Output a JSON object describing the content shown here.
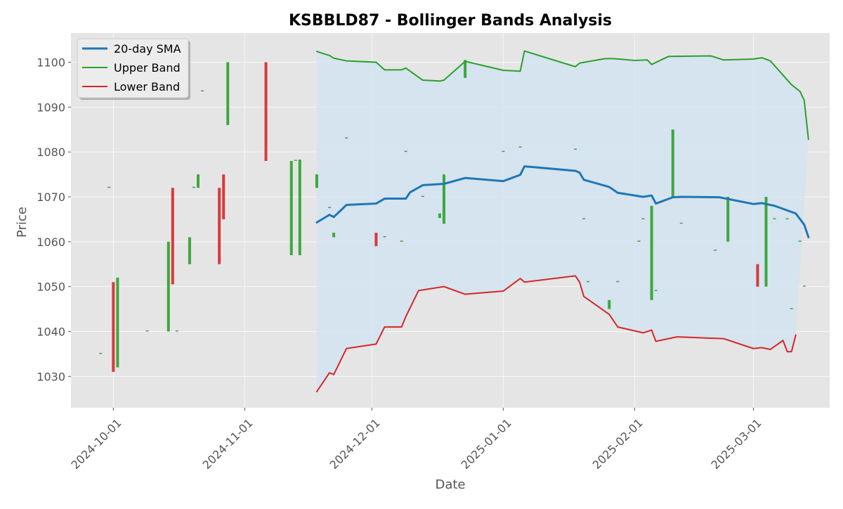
{
  "chart_data": {
    "type": "line",
    "title": "KSBBLD87 - Bollinger Bands Analysis",
    "xlabel": "Date",
    "ylabel": "Price",
    "xlim": [
      "2024-09-21",
      "2025-03-19"
    ],
    "ylim": [
      1023,
      1106.5
    ],
    "yticks": [
      1030,
      1040,
      1050,
      1060,
      1070,
      1080,
      1090,
      1100
    ],
    "xticks": [
      "2024-10-01",
      "2024-11-01",
      "2024-12-01",
      "2025-01-01",
      "2025-02-01",
      "2025-03-01"
    ],
    "grid": true,
    "legend_position": "top-left",
    "colors": {
      "sma": "#1f77b4",
      "upper": "#2ca02c",
      "lower": "#d62728",
      "band_fill": "#cfe3f0",
      "up_candle": "#2ca02c",
      "down_candle": "#d62728",
      "plot_bg": "#e5e5e5"
    },
    "series": [
      {
        "name": "20-day SMA",
        "color": "#1f77b4",
        "points": [
          [
            "2024-11-18",
            1064.3
          ],
          [
            "2024-11-21",
            1066.0
          ],
          [
            "2024-11-22",
            1065.5
          ],
          [
            "2024-11-25",
            1068.2
          ],
          [
            "2024-12-02",
            1068.5
          ],
          [
            "2024-12-04",
            1069.6
          ],
          [
            "2024-12-09",
            1069.6
          ],
          [
            "2024-12-10",
            1071.0
          ],
          [
            "2024-12-13",
            1072.6
          ],
          [
            "2024-12-18",
            1072.9
          ],
          [
            "2024-12-23",
            1074.2
          ],
          [
            "2025-01-01",
            1073.5
          ],
          [
            "2025-01-05",
            1074.9
          ],
          [
            "2025-01-06",
            1076.8
          ],
          [
            "2025-01-18",
            1075.8
          ],
          [
            "2025-01-19",
            1075.4
          ],
          [
            "2025-01-20",
            1073.8
          ],
          [
            "2025-01-26",
            1072.2
          ],
          [
            "2025-01-28",
            1070.9
          ],
          [
            "2025-02-03",
            1070.0
          ],
          [
            "2025-02-05",
            1070.3
          ],
          [
            "2025-02-06",
            1068.5
          ],
          [
            "2025-02-10",
            1069.9
          ],
          [
            "2025-02-12",
            1070.0
          ],
          [
            "2025-02-21",
            1069.9
          ],
          [
            "2025-03-01",
            1068.4
          ],
          [
            "2025-03-03",
            1068.6
          ],
          [
            "2025-03-06",
            1068.0
          ],
          [
            "2025-03-11",
            1066.3
          ],
          [
            "2025-03-13",
            1063.8
          ],
          [
            "2025-03-14",
            1061.0
          ]
        ]
      },
      {
        "name": "Upper Band",
        "color": "#2ca02c",
        "points": [
          [
            "2024-11-18",
            1102.4
          ],
          [
            "2024-11-21",
            1101.5
          ],
          [
            "2024-11-22",
            1100.9
          ],
          [
            "2024-11-25",
            1100.3
          ],
          [
            "2024-12-02",
            1100.0
          ],
          [
            "2024-12-04",
            1098.3
          ],
          [
            "2024-12-08",
            1098.3
          ],
          [
            "2024-12-09",
            1098.7
          ],
          [
            "2024-12-13",
            1096.0
          ],
          [
            "2024-12-17",
            1095.8
          ],
          [
            "2024-12-18",
            1096.0
          ],
          [
            "2024-12-23",
            1100.2
          ],
          [
            "2025-01-01",
            1098.2
          ],
          [
            "2025-01-05",
            1098.0
          ],
          [
            "2025-01-06",
            1102.5
          ],
          [
            "2025-01-18",
            1099.0
          ],
          [
            "2025-01-19",
            1099.8
          ],
          [
            "2025-01-25",
            1100.8
          ],
          [
            "2025-01-27",
            1100.8
          ],
          [
            "2025-02-01",
            1100.4
          ],
          [
            "2025-02-04",
            1100.5
          ],
          [
            "2025-02-05",
            1099.5
          ],
          [
            "2025-02-09",
            1101.3
          ],
          [
            "2025-02-19",
            1101.4
          ],
          [
            "2025-02-22",
            1100.5
          ],
          [
            "2025-03-01",
            1100.7
          ],
          [
            "2025-03-03",
            1101.0
          ],
          [
            "2025-03-05",
            1100.3
          ],
          [
            "2025-03-10",
            1095.0
          ],
          [
            "2025-03-12",
            1093.5
          ],
          [
            "2025-03-13",
            1091.5
          ],
          [
            "2025-03-14",
            1082.8
          ]
        ]
      },
      {
        "name": "Lower Band",
        "color": "#d62728",
        "points": [
          [
            "2024-11-18",
            1026.6
          ],
          [
            "2024-11-21",
            1030.8
          ],
          [
            "2024-11-22",
            1030.4
          ],
          [
            "2024-11-25",
            1036.2
          ],
          [
            "2024-12-02",
            1037.2
          ],
          [
            "2024-12-04",
            1041.0
          ],
          [
            "2024-12-08",
            1041.0
          ],
          [
            "2024-12-09",
            1043.3
          ],
          [
            "2024-12-12",
            1049.1
          ],
          [
            "2024-12-18",
            1050.0
          ],
          [
            "2024-12-23",
            1048.3
          ],
          [
            "2025-01-01",
            1049.0
          ],
          [
            "2025-01-05",
            1051.8
          ],
          [
            "2025-01-06",
            1051.0
          ],
          [
            "2025-01-18",
            1052.4
          ],
          [
            "2025-01-19",
            1051.0
          ],
          [
            "2025-01-20",
            1047.8
          ],
          [
            "2025-01-26",
            1043.8
          ],
          [
            "2025-01-28",
            1041.0
          ],
          [
            "2025-02-03",
            1039.7
          ],
          [
            "2025-02-05",
            1040.3
          ],
          [
            "2025-02-06",
            1037.8
          ],
          [
            "2025-02-11",
            1038.8
          ],
          [
            "2025-02-22",
            1038.4
          ],
          [
            "2025-03-01",
            1036.2
          ],
          [
            "2025-03-03",
            1036.4
          ],
          [
            "2025-03-05",
            1036.0
          ],
          [
            "2025-03-08",
            1038.0
          ],
          [
            "2025-03-09",
            1035.5
          ],
          [
            "2025-03-10",
            1035.5
          ],
          [
            "2025-03-11",
            1039.2
          ]
        ]
      }
    ],
    "candles": [
      {
        "date": "2024-09-28",
        "low": 1035.0,
        "high": 1035.0,
        "dir": "up"
      },
      {
        "date": "2024-09-30",
        "low": 1072.0,
        "high": 1072.0,
        "dir": "up"
      },
      {
        "date": "2024-10-01",
        "low": 1031.0,
        "high": 1051.0,
        "dir": "down"
      },
      {
        "date": "2024-10-02",
        "low": 1032.0,
        "high": 1052.0,
        "dir": "up"
      },
      {
        "date": "2024-10-09",
        "low": 1040.0,
        "high": 1040.0,
        "dir": "up"
      },
      {
        "date": "2024-10-14",
        "low": 1040.0,
        "high": 1060.0,
        "dir": "up"
      },
      {
        "date": "2024-10-15",
        "low": 1050.5,
        "high": 1072.0,
        "dir": "down"
      },
      {
        "date": "2024-10-16",
        "low": 1040.0,
        "high": 1040.0,
        "dir": "up"
      },
      {
        "date": "2024-10-19",
        "low": 1055.0,
        "high": 1061.0,
        "dir": "up"
      },
      {
        "date": "2024-10-20",
        "low": 1072.0,
        "high": 1072.0,
        "dir": "up"
      },
      {
        "date": "2024-10-21",
        "low": 1072.0,
        "high": 1075.0,
        "dir": "up"
      },
      {
        "date": "2024-10-22",
        "low": 1093.5,
        "high": 1093.5,
        "dir": "up"
      },
      {
        "date": "2024-10-26",
        "low": 1055.0,
        "high": 1072.0,
        "dir": "down"
      },
      {
        "date": "2024-10-27",
        "low": 1065.0,
        "high": 1075.0,
        "dir": "down"
      },
      {
        "date": "2024-10-28",
        "low": 1086.0,
        "high": 1100.0,
        "dir": "up"
      },
      {
        "date": "2024-11-06",
        "low": 1078.0,
        "high": 1100.0,
        "dir": "down"
      },
      {
        "date": "2024-11-12",
        "low": 1057.0,
        "high": 1078.0,
        "dir": "up"
      },
      {
        "date": "2024-11-13",
        "low": 1078.0,
        "high": 1078.0,
        "dir": "up"
      },
      {
        "date": "2024-11-14",
        "low": 1057.0,
        "high": 1078.3,
        "dir": "up"
      },
      {
        "date": "2024-11-18",
        "low": 1072.0,
        "high": 1075.0,
        "dir": "up"
      },
      {
        "date": "2024-11-21",
        "low": 1067.5,
        "high": 1067.5,
        "dir": "up"
      },
      {
        "date": "2024-11-22",
        "low": 1061.0,
        "high": 1062.0,
        "dir": "up"
      },
      {
        "date": "2024-11-25",
        "low": 1083.0,
        "high": 1083.0,
        "dir": "up"
      },
      {
        "date": "2024-12-02",
        "low": 1059.0,
        "high": 1062.0,
        "dir": "down"
      },
      {
        "date": "2024-12-04",
        "low": 1061.0,
        "high": 1061.0,
        "dir": "up"
      },
      {
        "date": "2024-12-08",
        "low": 1060.0,
        "high": 1060.0,
        "dir": "up"
      },
      {
        "date": "2024-12-09",
        "low": 1080.0,
        "high": 1080.0,
        "dir": "up"
      },
      {
        "date": "2024-12-13",
        "low": 1070.0,
        "high": 1070.0,
        "dir": "up"
      },
      {
        "date": "2024-12-17",
        "low": 1065.3,
        "high": 1066.3,
        "dir": "up"
      },
      {
        "date": "2024-12-18",
        "low": 1064.0,
        "high": 1075.0,
        "dir": "up"
      },
      {
        "date": "2024-12-23",
        "low": 1096.5,
        "high": 1100.5,
        "dir": "up"
      },
      {
        "date": "2025-01-01",
        "low": 1080.0,
        "high": 1080.0,
        "dir": "up"
      },
      {
        "date": "2025-01-05",
        "low": 1081.0,
        "high": 1081.0,
        "dir": "up"
      },
      {
        "date": "2025-01-18",
        "low": 1080.5,
        "high": 1080.5,
        "dir": "up"
      },
      {
        "date": "2025-01-20",
        "low": 1065.0,
        "high": 1065.0,
        "dir": "up"
      },
      {
        "date": "2025-01-21",
        "low": 1051.0,
        "high": 1051.0,
        "dir": "up"
      },
      {
        "date": "2025-01-26",
        "low": 1045.0,
        "high": 1047.0,
        "dir": "up"
      },
      {
        "date": "2025-01-28",
        "low": 1051.0,
        "high": 1051.0,
        "dir": "up"
      },
      {
        "date": "2025-02-02",
        "low": 1060.0,
        "high": 1060.0,
        "dir": "up"
      },
      {
        "date": "2025-02-03",
        "low": 1065.0,
        "high": 1065.0,
        "dir": "up"
      },
      {
        "date": "2025-02-05",
        "low": 1047.0,
        "high": 1068.0,
        "dir": "up"
      },
      {
        "date": "2025-02-06",
        "low": 1049.0,
        "high": 1049.0,
        "dir": "up"
      },
      {
        "date": "2025-02-10",
        "low": 1070.0,
        "high": 1085.0,
        "dir": "up"
      },
      {
        "date": "2025-02-12",
        "low": 1064.0,
        "high": 1064.0,
        "dir": "up"
      },
      {
        "date": "2025-02-20",
        "low": 1058.0,
        "high": 1058.0,
        "dir": "up"
      },
      {
        "date": "2025-02-23",
        "low": 1060.0,
        "high": 1070.0,
        "dir": "up"
      },
      {
        "date": "2025-03-02",
        "low": 1050.0,
        "high": 1055.0,
        "dir": "down"
      },
      {
        "date": "2025-03-04",
        "low": 1050.0,
        "high": 1070.0,
        "dir": "up"
      },
      {
        "date": "2025-03-06",
        "low": 1065.0,
        "high": 1065.0,
        "dir": "up"
      },
      {
        "date": "2025-03-09",
        "low": 1065.0,
        "high": 1065.0,
        "dir": "up"
      },
      {
        "date": "2025-03-10",
        "low": 1045.0,
        "high": 1045.0,
        "dir": "up"
      },
      {
        "date": "2025-03-12",
        "low": 1060.0,
        "high": 1060.0,
        "dir": "up"
      },
      {
        "date": "2025-03-13",
        "low": 1050.0,
        "high": 1050.0,
        "dir": "up"
      }
    ]
  }
}
